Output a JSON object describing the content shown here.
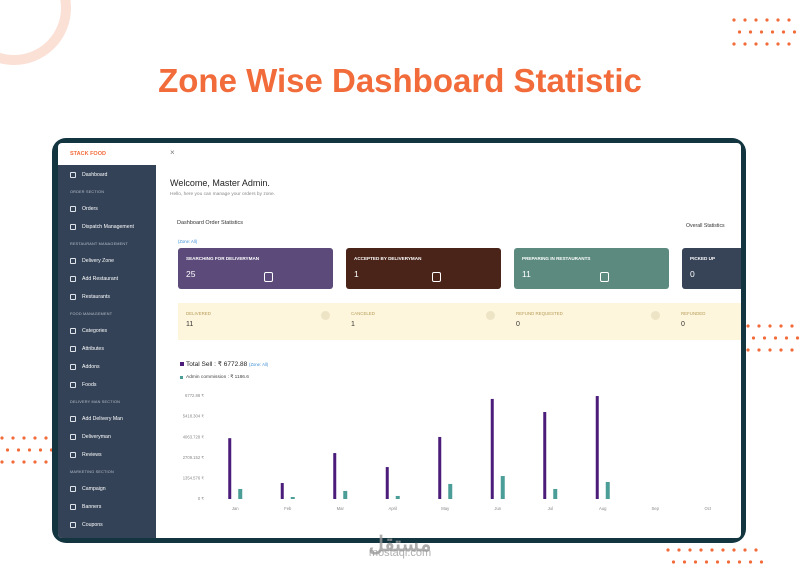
{
  "headline": "Zone Wise Dashboard Statistic",
  "watermark": {
    "arabic": "مستقل",
    "latin": "mostaql.com"
  },
  "topbar": {
    "logo": "STACK FOOD",
    "close": "×"
  },
  "sidebar": [
    {
      "items": [
        "Dashboard"
      ]
    },
    {
      "title": "ORDER SECTION",
      "items": [
        "Orders",
        "Dispatch Management"
      ]
    },
    {
      "title": "RESTAURANT MANAGEMENT",
      "items": [
        "Delivery Zone",
        "Add Restaurant",
        "Restaurants"
      ]
    },
    {
      "title": "FOOD MANAGEMENT",
      "items": [
        "Categories",
        "Attributes",
        "Addons",
        "Foods"
      ]
    },
    {
      "title": "DELIVERY MAN SECTION",
      "items": [
        "Add Delivery Man",
        "Deliveryman",
        "Reviews"
      ]
    },
    {
      "title": "MARKETING SECTION",
      "items": [
        "Campaign",
        "Banners",
        "Coupons"
      ]
    }
  ],
  "welcome": {
    "title": "Welcome, Master Admin.",
    "subtitle": "Hello, here you can manage your orders by zone."
  },
  "statistics": {
    "title": "Dashboard Order Statistics",
    "zone": "(Zone: All)",
    "filter": "Overall Statistics"
  },
  "status_cards": [
    {
      "label": "SEARCHING FOR DELIVERYMAN",
      "value": 25,
      "color": "#5b4a7a"
    },
    {
      "label": "ACCEPTED BY DELIVERYMAN",
      "value": 1,
      "color": "#4a2319"
    },
    {
      "label": "PREPARING IN RESTAURANTS",
      "value": 11,
      "color": "#5c8a7f"
    },
    {
      "label": "PICKED UP",
      "value": 0,
      "color": "#374357"
    }
  ],
  "summary_cards": [
    {
      "label": "DELIVERED",
      "value": 11
    },
    {
      "label": "CANCELED",
      "value": 1
    },
    {
      "label": "REFUND REQUESTED",
      "value": 0
    },
    {
      "label": "REFUNDED",
      "value": 0
    }
  ],
  "chart_data": {
    "type": "bar",
    "annotation": "(Zone: All)",
    "categories": [
      "Jan",
      "Feb",
      "Mar",
      "April",
      "May",
      "Jun",
      "Jul",
      "Aug",
      "Sep",
      "Oct"
    ],
    "series": [
      {
        "name": "Total Sell : ₹ 6772.88",
        "color": "#4b1c7a",
        "values": [
          4000,
          1050,
          3020,
          2100,
          4080,
          6580,
          5720,
          6770,
          0,
          0
        ]
      },
      {
        "name": "Admin commission : ₹ 1186.6",
        "color": "#4a9e97",
        "values": [
          660,
          130,
          530,
          200,
          990,
          1510,
          660,
          1120,
          0,
          0
        ]
      }
    ],
    "ylim": [
      0,
      6772.88
    ],
    "yticks": [
      {
        "value": 0,
        "label": "0 ₹"
      },
      {
        "value": 1354.576,
        "label": "1354.576 ₹"
      },
      {
        "value": 2709.152,
        "label": "2709.152 ₹"
      },
      {
        "value": 4063.728,
        "label": "4063.728 ₹"
      },
      {
        "value": 5418.304,
        "label": "5418.304 ₹"
      },
      {
        "value": 6772.88,
        "label": "6772.88 ₹"
      }
    ],
    "grid": false
  }
}
